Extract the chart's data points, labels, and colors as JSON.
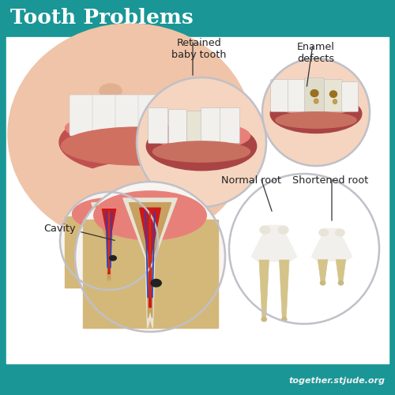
{
  "title": "Tooth Problems",
  "subtitle": "together.stjude.org",
  "header_color": "#1a9696",
  "footer_color": "#1a9696",
  "bg_color": "#ffffff",
  "border_color": "#1a9696",
  "title_color": "#ffffff",
  "subtitle_color": "#ffffff",
  "label_color": "#222222",
  "labels": {
    "retained": "Retained\nbaby tooth",
    "enamel": "Enamel\ndefects",
    "cavity": "Cavity",
    "normal_root": "Normal root",
    "shortened_root": "Shortened root"
  },
  "face_skin": "#f0c4a8",
  "face_skin2": "#f5d5c0",
  "gum_pink": "#e8807a",
  "gum_dark": "#c05050",
  "tooth_white": "#f2f0ec",
  "tooth_cream": "#e8e4d4",
  "tooth_beige": "#c8b882",
  "tooth_beige2": "#d4c48a",
  "enamel_brown": "#9a7020",
  "enamel_brown2": "#b88820",
  "jaw_sandy": "#d4b87a",
  "jaw_outer": "#c0a060",
  "dentin_color": "#c8a060",
  "pulp_red": "#cc1818",
  "nerve_blue": "#2244cc",
  "nerve_red": "#cc3322",
  "nerve_yellow": "#ddaa00",
  "cavity_dark": "#222222",
  "circle_edge": "#c0c0c8",
  "circle_bg": "#f8f4f0"
}
